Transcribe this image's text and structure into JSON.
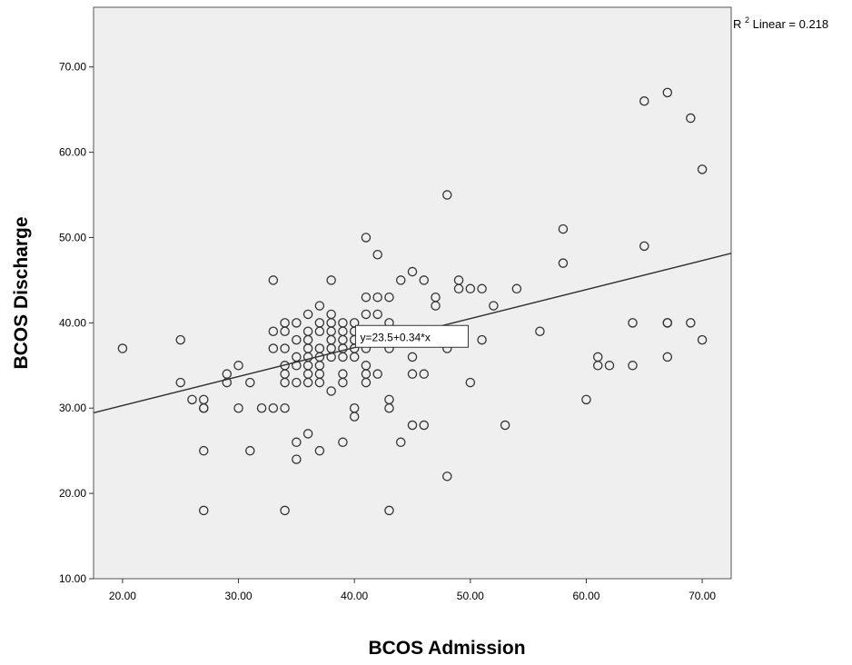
{
  "chart_data": {
    "type": "scatter",
    "xlabel": "BCOS Admission",
    "ylabel": "BCOS Discharge",
    "xlim": [
      17.5,
      72.5
    ],
    "ylim": [
      10,
      77
    ],
    "x_ticks": [
      "20.00",
      "30.00",
      "40.00",
      "50.00",
      "60.00",
      "70.00"
    ],
    "y_ticks": [
      "10.00",
      "20.00",
      "30.00",
      "40.00",
      "50.00",
      "60.00",
      "70.00"
    ],
    "grid": false,
    "background_color": "#efefef",
    "marker_color": "#333333",
    "fit_line": {
      "intercept": 23.5,
      "slope": 0.34,
      "equation_label": "y=23.5+0.34*x",
      "r2_prefix": "R",
      "r2_sup": "2",
      "r2_suffix": " Linear = 0.218"
    },
    "points": [
      [
        20,
        37
      ],
      [
        25,
        38
      ],
      [
        25,
        33
      ],
      [
        26,
        31
      ],
      [
        27,
        31
      ],
      [
        27,
        30
      ],
      [
        27,
        30
      ],
      [
        27,
        25
      ],
      [
        27,
        18
      ],
      [
        29,
        34
      ],
      [
        29,
        33
      ],
      [
        30,
        35
      ],
      [
        30,
        30
      ],
      [
        31,
        33
      ],
      [
        31,
        25
      ],
      [
        32,
        30
      ],
      [
        33,
        30
      ],
      [
        33,
        45
      ],
      [
        33,
        39
      ],
      [
        33,
        37
      ],
      [
        34,
        40
      ],
      [
        34,
        39
      ],
      [
        34,
        37
      ],
      [
        34,
        35
      ],
      [
        34,
        34
      ],
      [
        34,
        33
      ],
      [
        34,
        30
      ],
      [
        34,
        18
      ],
      [
        35,
        40
      ],
      [
        35,
        38
      ],
      [
        35,
        36
      ],
      [
        35,
        35
      ],
      [
        35,
        33
      ],
      [
        35,
        26
      ],
      [
        35,
        24
      ],
      [
        36,
        41
      ],
      [
        36,
        39
      ],
      [
        36,
        38
      ],
      [
        36,
        37
      ],
      [
        36,
        36
      ],
      [
        36,
        35
      ],
      [
        36,
        34
      ],
      [
        36,
        33
      ],
      [
        36,
        27
      ],
      [
        37,
        42
      ],
      [
        37,
        40
      ],
      [
        37,
        39
      ],
      [
        37,
        37
      ],
      [
        37,
        36
      ],
      [
        37,
        35
      ],
      [
        37,
        34
      ],
      [
        37,
        33
      ],
      [
        37,
        25
      ],
      [
        38,
        45
      ],
      [
        38,
        41
      ],
      [
        38,
        40
      ],
      [
        38,
        39
      ],
      [
        38,
        38
      ],
      [
        38,
        37
      ],
      [
        38,
        36
      ],
      [
        38,
        32
      ],
      [
        39,
        40
      ],
      [
        39,
        39
      ],
      [
        39,
        38
      ],
      [
        39,
        37
      ],
      [
        39,
        36
      ],
      [
        39,
        34
      ],
      [
        39,
        33
      ],
      [
        39,
        26
      ],
      [
        40,
        40
      ],
      [
        40,
        39
      ],
      [
        40,
        38
      ],
      [
        40,
        37
      ],
      [
        40,
        36
      ],
      [
        40,
        30
      ],
      [
        40,
        29
      ],
      [
        41,
        50
      ],
      [
        41,
        43
      ],
      [
        41,
        41
      ],
      [
        41,
        39
      ],
      [
        41,
        38
      ],
      [
        41,
        37
      ],
      [
        41,
        35
      ],
      [
        41,
        34
      ],
      [
        41,
        33
      ],
      [
        42,
        48
      ],
      [
        42,
        43
      ],
      [
        42,
        41
      ],
      [
        42,
        38
      ],
      [
        42,
        34
      ],
      [
        43,
        43
      ],
      [
        43,
        40
      ],
      [
        43,
        38
      ],
      [
        43,
        37
      ],
      [
        43,
        31
      ],
      [
        43,
        30
      ],
      [
        43,
        18
      ],
      [
        44,
        45
      ],
      [
        44,
        26
      ],
      [
        45,
        46
      ],
      [
        45,
        36
      ],
      [
        45,
        34
      ],
      [
        45,
        28
      ],
      [
        46,
        45
      ],
      [
        46,
        39
      ],
      [
        46,
        34
      ],
      [
        46,
        28
      ],
      [
        47,
        43
      ],
      [
        47,
        42
      ],
      [
        48,
        55
      ],
      [
        48,
        37
      ],
      [
        48,
        22
      ],
      [
        49,
        45
      ],
      [
        49,
        44
      ],
      [
        50,
        44
      ],
      [
        50,
        33
      ],
      [
        51,
        44
      ],
      [
        51,
        38
      ],
      [
        52,
        42
      ],
      [
        53,
        28
      ],
      [
        54,
        44
      ],
      [
        56,
        39
      ],
      [
        58,
        51
      ],
      [
        58,
        47
      ],
      [
        60,
        31
      ],
      [
        61,
        36
      ],
      [
        61,
        35
      ],
      [
        62,
        35
      ],
      [
        64,
        40
      ],
      [
        64,
        35
      ],
      [
        65,
        66
      ],
      [
        65,
        49
      ],
      [
        67,
        67
      ],
      [
        67,
        40
      ],
      [
        67,
        40
      ],
      [
        67,
        36
      ],
      [
        69,
        64
      ],
      [
        69,
        40
      ],
      [
        70,
        58
      ],
      [
        70,
        38
      ]
    ]
  }
}
